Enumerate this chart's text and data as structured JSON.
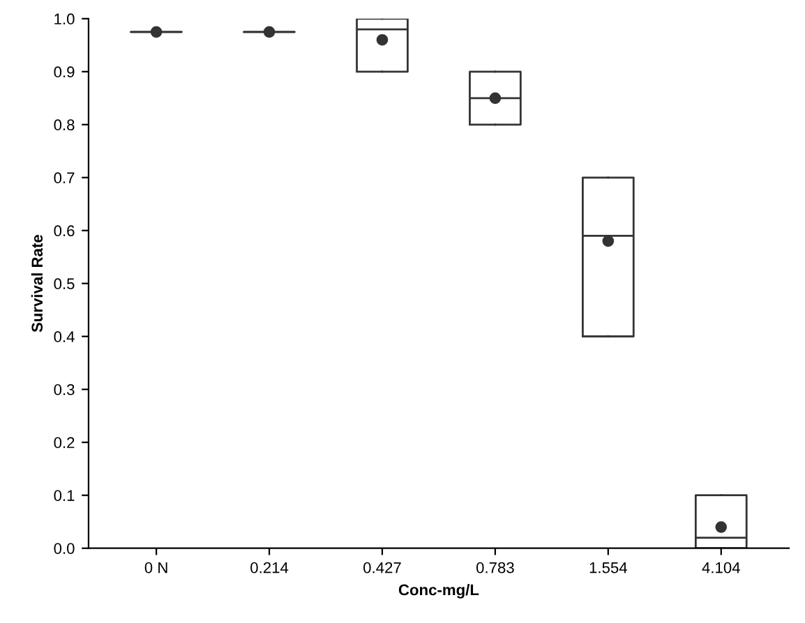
{
  "chart_data": {
    "type": "box",
    "xlabel": "Conc-mg/L",
    "ylabel": "Survival Rate",
    "categories": [
      "0 N",
      "0.214",
      "0.427",
      "0.783",
      "1.554",
      "4.104"
    ],
    "boxes": [
      {
        "low": 0.975,
        "q1": 0.975,
        "median": 0.975,
        "q3": 0.975,
        "high": 0.975,
        "mean": 0.975
      },
      {
        "low": 0.975,
        "q1": 0.975,
        "median": 0.975,
        "q3": 0.975,
        "high": 0.975,
        "mean": 0.975
      },
      {
        "low": 0.9,
        "q1": 0.9,
        "median": 0.98,
        "q3": 1.0,
        "high": 1.0,
        "mean": 0.96
      },
      {
        "low": 0.8,
        "q1": 0.8,
        "median": 0.85,
        "q3": 0.9,
        "high": 0.9,
        "mean": 0.85
      },
      {
        "low": 0.4,
        "q1": 0.4,
        "median": 0.59,
        "q3": 0.7,
        "high": 0.7,
        "mean": 0.58
      },
      {
        "low": 0.0,
        "q1": 0.0,
        "median": 0.02,
        "q3": 0.1,
        "high": 0.1,
        "mean": 0.04
      }
    ],
    "color": "#333333",
    "ylim": [
      0.0,
      1.0
    ],
    "yticks": [
      {
        "value": 0.0,
        "label": "0.0"
      },
      {
        "value": 0.1,
        "label": "0.1"
      },
      {
        "value": 0.2,
        "label": "0.2"
      },
      {
        "value": 0.3,
        "label": "0.3"
      },
      {
        "value": 0.4,
        "label": "0.4"
      },
      {
        "value": 0.5,
        "label": "0.5"
      },
      {
        "value": 0.6,
        "label": "0.6"
      },
      {
        "value": 0.7,
        "label": "0.7"
      },
      {
        "value": 0.8,
        "label": "0.8"
      },
      {
        "value": 0.9,
        "label": "0.9"
      },
      {
        "value": 1.0,
        "label": "1.0"
      }
    ],
    "grid": false,
    "legend": false
  }
}
